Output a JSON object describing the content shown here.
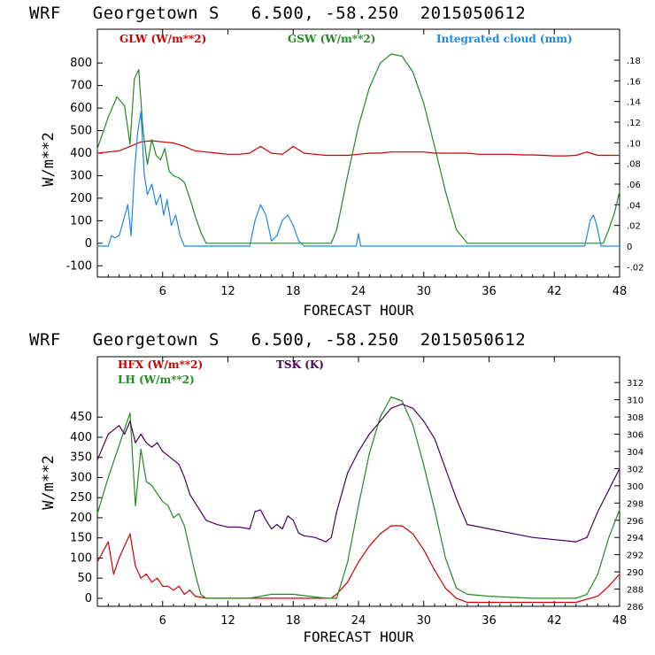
{
  "chart_data": [
    {
      "type": "line",
      "title": "WRF   Georgetown S   6.500, -58.250  2015050612",
      "xlabel": "FORECAST HOUR",
      "ylabel": "W/m**2",
      "xlim": [
        0,
        48
      ],
      "ylim": [
        -150,
        950
      ],
      "xticks": [
        6,
        12,
        18,
        24,
        30,
        36,
        42,
        48
      ],
      "yticks": [
        -100,
        0,
        100,
        200,
        300,
        400,
        500,
        600,
        700,
        800
      ],
      "y2label": "",
      "y2lim": [
        -0.03,
        0.21
      ],
      "y2ticks": [
        -0.02,
        0,
        0.02,
        0.04,
        0.06,
        0.08,
        0.1,
        0.12,
        0.14,
        0.16,
        0.18
      ],
      "y2ticklabels": [
        "-.02",
        "0",
        ".02",
        ".04",
        ".06",
        ".08",
        ".10",
        ".12",
        ".14",
        ".16",
        ".18"
      ],
      "series": [
        {
          "name": "GLW (W/m**2)",
          "color": "#cc0000",
          "axis": "left",
          "x": [
            0,
            1,
            2,
            3,
            4,
            5,
            6,
            7,
            8,
            9,
            10,
            11,
            12,
            13,
            14,
            15,
            16,
            17,
            18,
            19,
            20,
            21,
            22,
            23,
            24,
            25,
            26,
            27,
            28,
            29,
            30,
            31,
            32,
            33,
            34,
            35,
            36,
            37,
            38,
            39,
            40,
            41,
            42,
            43,
            44,
            45,
            46,
            47,
            48
          ],
          "y": [
            400,
            405,
            410,
            430,
            450,
            455,
            450,
            445,
            430,
            410,
            405,
            400,
            395,
            395,
            400,
            430,
            400,
            395,
            430,
            400,
            395,
            390,
            390,
            390,
            395,
            400,
            400,
            405,
            405,
            405,
            405,
            400,
            400,
            400,
            400,
            395,
            395,
            395,
            395,
            392,
            392,
            390,
            388,
            388,
            390,
            405,
            390,
            390,
            390
          ]
        },
        {
          "name": "GSW (W/m**2)",
          "color": "#228b22",
          "axis": "left",
          "x": [
            0,
            1,
            1.8,
            2.5,
            3,
            3.4,
            3.8,
            4.2,
            4.6,
            5,
            5.4,
            5.8,
            6.2,
            6.6,
            7,
            7.5,
            8,
            8.5,
            9,
            9.5,
            10,
            10.5,
            21.5,
            22,
            23,
            24,
            25,
            26,
            27,
            28,
            29,
            30,
            31,
            32,
            33,
            34,
            34.5,
            46.5,
            47,
            47.5,
            48
          ],
          "y": [
            420,
            560,
            650,
            610,
            440,
            730,
            770,
            500,
            350,
            460,
            390,
            370,
            420,
            320,
            300,
            290,
            270,
            200,
            120,
            50,
            0,
            0,
            0,
            60,
            300,
            520,
            690,
            800,
            840,
            830,
            760,
            620,
            430,
            230,
            60,
            0,
            0,
            0,
            60,
            130,
            230
          ]
        },
        {
          "name": "Integrated cloud (mm)",
          "color": "#1e88e5",
          "axis": "right",
          "x": [
            0,
            1,
            1.3,
            1.6,
            2,
            2.4,
            2.8,
            3.1,
            3.4,
            3.7,
            4,
            4.3,
            4.6,
            5,
            5.4,
            5.8,
            6.1,
            6.4,
            6.8,
            7.2,
            7.6,
            8,
            8.4,
            14,
            14.5,
            15,
            15.5,
            16,
            16.5,
            17,
            17.5,
            18,
            18.5,
            19,
            23.8,
            24,
            24.2,
            44.8,
            45.3,
            45.6,
            45.9,
            46.3,
            48
          ],
          "y": [
            0,
            0,
            0.01,
            0.008,
            0.01,
            0.025,
            0.04,
            0.01,
            0.07,
            0.11,
            0.13,
            0.07,
            0.05,
            0.06,
            0.04,
            0.05,
            0.03,
            0.045,
            0.02,
            0.03,
            0.01,
            0,
            0,
            0,
            0.025,
            0.04,
            0.03,
            0.005,
            0.01,
            0.025,
            0.03,
            0.02,
            0.005,
            0,
            0,
            0.012,
            0,
            0,
            0.025,
            0.03,
            0.02,
            0,
            0
          ]
        }
      ]
    },
    {
      "type": "line",
      "title": "WRF   Georgetown S   6.500, -58.250  2015050612",
      "xlabel": "FORECAST HOUR",
      "ylabel": "W/m**2",
      "xlim": [
        0,
        48
      ],
      "ylim": [
        -20,
        600
      ],
      "xticks": [
        6,
        12,
        18,
        24,
        30,
        36,
        42,
        48
      ],
      "yticks": [
        0,
        50,
        100,
        150,
        200,
        250,
        300,
        350,
        400,
        450
      ],
      "y2label": "",
      "y2lim": [
        286,
        315
      ],
      "y2ticks": [
        286,
        288,
        290,
        292,
        294,
        296,
        298,
        300,
        302,
        304,
        306,
        308,
        310,
        312
      ],
      "series": [
        {
          "name": "HFX (W/m**2)",
          "color": "#cc0000",
          "axis": "left",
          "x": [
            0,
            1,
            1.5,
            2,
            2.5,
            3,
            3.5,
            4,
            4.5,
            5,
            5.5,
            6,
            6.5,
            7,
            7.5,
            8,
            8.5,
            9,
            10,
            12,
            14,
            16,
            18,
            20,
            21.5,
            22,
            23,
            24,
            25,
            26,
            27,
            28,
            29,
            30,
            31,
            32,
            33,
            34,
            36,
            40,
            44,
            46,
            47,
            48
          ],
          "y": [
            90,
            140,
            60,
            100,
            130,
            160,
            80,
            50,
            60,
            40,
            50,
            30,
            30,
            20,
            30,
            10,
            20,
            5,
            0,
            0,
            0,
            0,
            0,
            0,
            0,
            10,
            40,
            90,
            130,
            160,
            180,
            180,
            160,
            120,
            70,
            25,
            0,
            -10,
            -10,
            -10,
            -10,
            5,
            30,
            60
          ]
        },
        {
          "name": "LH (W/m**2)",
          "color": "#228b22",
          "axis": "left",
          "x": [
            0,
            1,
            2,
            2.5,
            3,
            3.5,
            4,
            4.5,
            5,
            5.5,
            6,
            6.5,
            7,
            7.5,
            8,
            8.5,
            9,
            9.5,
            10,
            14,
            16,
            18,
            21,
            22,
            23,
            24,
            25,
            26,
            27,
            28,
            29,
            30,
            31,
            32,
            33,
            34,
            36,
            40,
            44,
            45,
            46,
            47,
            48
          ],
          "y": [
            210,
            300,
            380,
            420,
            460,
            230,
            370,
            290,
            280,
            260,
            240,
            230,
            200,
            210,
            180,
            120,
            60,
            10,
            0,
            0,
            10,
            10,
            0,
            0,
            90,
            230,
            360,
            450,
            500,
            490,
            430,
            330,
            220,
            100,
            25,
            10,
            5,
            0,
            0,
            10,
            60,
            150,
            220
          ]
        },
        {
          "name": "TSK (K)",
          "color": "#4b0060",
          "axis": "right",
          "x": [
            0,
            1,
            2,
            2.5,
            3,
            3.5,
            4,
            4.5,
            5,
            5.5,
            6,
            6.5,
            7,
            7.5,
            8,
            8.5,
            9,
            9.5,
            10,
            11,
            12,
            13,
            14,
            14.5,
            15,
            15.5,
            16,
            16.5,
            17,
            17.5,
            18,
            18.5,
            19,
            20,
            21,
            21.5,
            22,
            23,
            24,
            25,
            26,
            27,
            28,
            29,
            30,
            31,
            32,
            33,
            34,
            36,
            40,
            44,
            45,
            46,
            47,
            48
          ],
          "y": [
            303,
            306,
            307,
            306,
            307.5,
            305,
            306,
            305,
            304.5,
            305,
            304,
            303.5,
            303,
            302.5,
            301,
            299,
            298,
            297,
            296,
            295.5,
            295.2,
            295.2,
            295,
            297,
            297.2,
            296,
            295,
            295.5,
            295,
            296.5,
            296,
            294.5,
            294.2,
            294,
            293.5,
            294,
            297,
            301.5,
            304,
            306,
            307.5,
            309,
            309.5,
            309,
            307.5,
            305.5,
            302,
            298.5,
            295.5,
            295,
            294,
            293.5,
            294,
            297,
            299.5,
            302
          ]
        }
      ]
    }
  ]
}
